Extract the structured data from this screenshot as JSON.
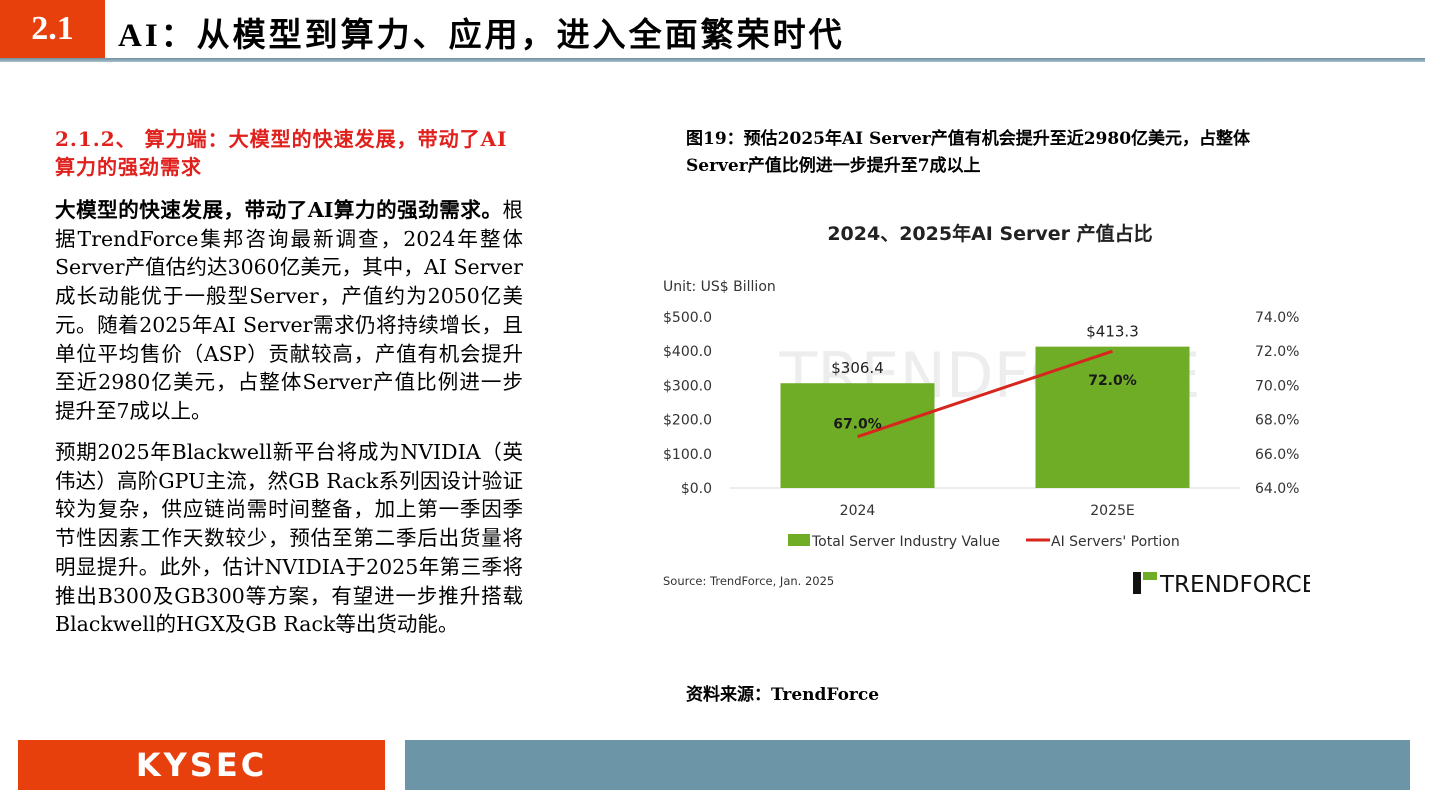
{
  "header": {
    "section_number": "2.1",
    "title": "AI：从模型到算力、应用，进入全面繁荣时代"
  },
  "section_heading": "2.1.2、 算力端：大模型的快速发展，带动了AI算力的强劲需求",
  "paragraphs": [
    {
      "lead": "大模型的快速发展，带动了AI算力的强劲需求。",
      "body": "根据TrendForce集邦咨询最新调查，2024年整体Server产值估约达3060亿美元，其中，AI Server成长动能优于一般型Server，产值约为2050亿美元。随着2025年AI Server需求仍将持续增长，且单位平均售价（ASP）贡献较高，产值有机会提升至近2980亿美元，占整体Server产值比例进一步提升至7成以上。"
    },
    {
      "lead": "",
      "body": "预期2025年Blackwell新平台将成为NVIDIA（英伟达）高阶GPU主流，然GB Rack系列因设计验证较为复杂，供应链尚需时间整备，加上第一季因季节性因素工作天数较少，预估至第二季后出货量将明显提升。此外，估计NVIDIA于2025年第三季将推出B300及GB300等方案，有望进一步推升搭载Blackwell的HGX及GB Rack等出货动能。"
    }
  ],
  "figure_caption": "图19：预估2025年AI Server产值有机会提升至近2980亿美元，占整体Server产值比例进一步提升至7成以上",
  "figure_source": "资料来源：TrendForce",
  "footer": {
    "logo": "KYSEC"
  },
  "colors": {
    "accent": "#e8400c",
    "bar": "#70ad26",
    "line": "#d7261e",
    "footer_bar": "#6d95a8"
  },
  "chart_data": {
    "type": "bar",
    "title": "2024、2025年AI Server 产值占比",
    "unit_label": "Unit: US$ Billion",
    "categories": [
      "2024",
      "2025E"
    ],
    "series": [
      {
        "name": "Total Server Industry Value",
        "type": "bar",
        "axis": "left",
        "values": [
          306.4,
          413.3
        ],
        "labels": [
          "$306.4",
          "$413.3"
        ]
      },
      {
        "name": "AI Servers' Portion",
        "type": "line",
        "axis": "right",
        "values": [
          67.0,
          72.0
        ],
        "labels": [
          "67.0%",
          "72.0%"
        ]
      }
    ],
    "left_axis": {
      "range": [
        0,
        500
      ],
      "ticks": [
        "$0.0",
        "$100.0",
        "$200.0",
        "$300.0",
        "$400.0",
        "$500.0"
      ]
    },
    "right_axis": {
      "range": [
        64,
        74
      ],
      "ticks": [
        "64.0%",
        "66.0%",
        "68.0%",
        "70.0%",
        "72.0%",
        "74.0%"
      ]
    },
    "legend": "bottom",
    "grid": false,
    "source": "Source: TrendForce, Jan. 2025",
    "watermark": "TRENDFORCE",
    "logo": "TRENDFORCE"
  }
}
